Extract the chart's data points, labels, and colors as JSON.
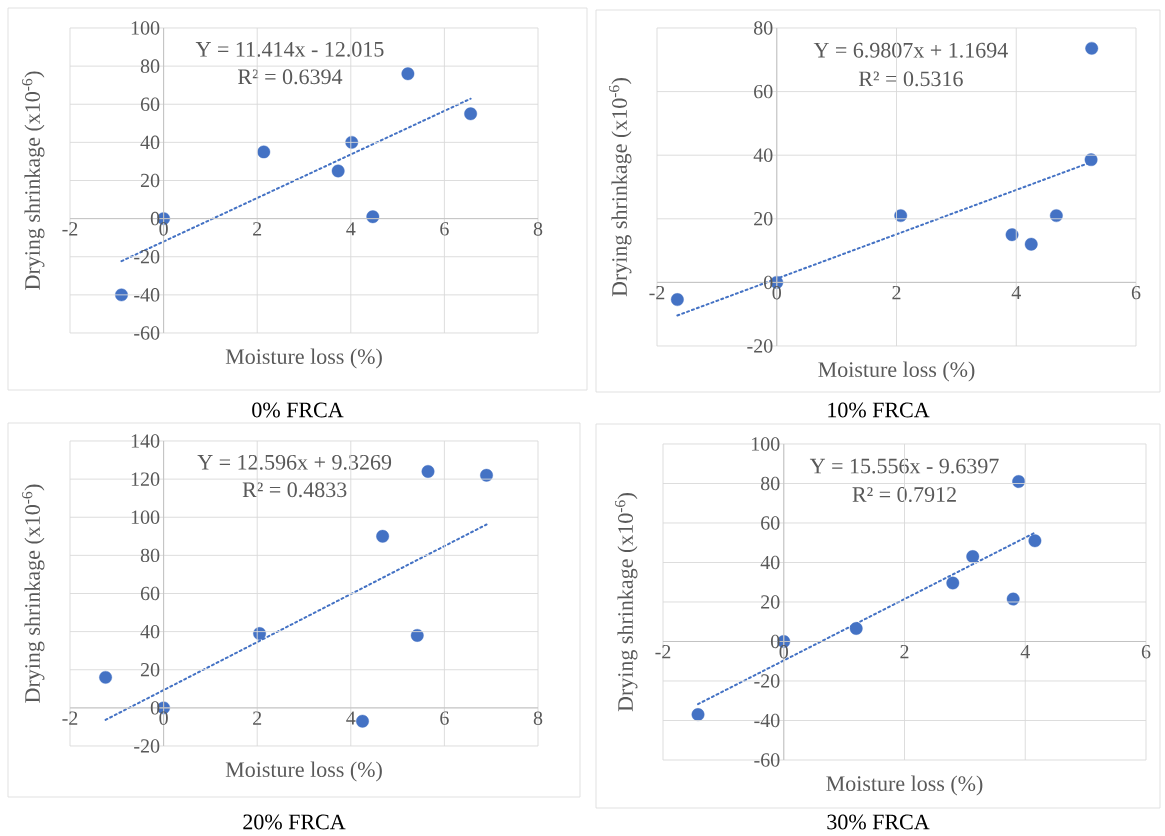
{
  "chart_data": [
    {
      "type": "scatter",
      "title": "0% FRCA",
      "xlabel": "Moisture loss (%)",
      "ylabel": "Drying shrinkage (x10$^{-6}$)",
      "annotations": [
        "Y = 11.414x - 12.015",
        "R² = 0.6394"
      ],
      "grid": true,
      "xlim": [
        -2,
        8
      ],
      "xticks": [
        -2,
        0,
        2,
        4,
        6,
        8
      ],
      "ylim": [
        -60,
        100
      ],
      "yticks": [
        -60,
        -40,
        -20,
        0,
        20,
        40,
        60,
        80,
        100
      ],
      "series": [
        {
          "type": "scatter",
          "marker": "circle",
          "color": "#4472c4",
          "x": [
            -0.9,
            0,
            2.14,
            3.73,
            4.02,
            4.47,
            5.22,
            6.56
          ],
          "values": [
            -40,
            0,
            35,
            25,
            40,
            1,
            76,
            55
          ]
        },
        {
          "type": "line",
          "line_style": "dotted",
          "marker": "none",
          "color": "#4472c4",
          "x": [
            -0.9,
            6.56
          ],
          "values": [
            -22.3,
            62.9
          ]
        }
      ]
    },
    {
      "type": "scatter",
      "title": "10% FRCA",
      "xlabel": "Moisture loss (%)",
      "ylabel": "Drying shrinkage (x10$^{-6}$)",
      "annotations": [
        "Y = 6.9807x + 1.1694",
        "R² = 0.5316"
      ],
      "grid": true,
      "xlim": [
        -2,
        6
      ],
      "xticks": [
        -2,
        0,
        2,
        4,
        6
      ],
      "ylim": [
        -20,
        80
      ],
      "yticks": [
        -20,
        0,
        20,
        40,
        60,
        80
      ],
      "series": [
        {
          "type": "scatter",
          "marker": "circle",
          "color": "#4472c4",
          "x": [
            -1.66,
            0,
            2.07,
            3.93,
            4.25,
            4.67,
            5.25,
            5.26
          ],
          "values": [
            -5.4,
            0,
            21,
            15,
            12,
            21,
            38.6,
            73.6
          ]
        },
        {
          "type": "line",
          "line_style": "dotted",
          "marker": "none",
          "color": "#4472c4",
          "x": [
            -1.66,
            5.25
          ],
          "values": [
            -10.4,
            37.8
          ]
        }
      ]
    },
    {
      "type": "scatter",
      "title": "20% FRCA",
      "xlabel": "Moisture loss (%)",
      "ylabel": "Drying shrinkage (x10$^{-6}$)",
      "annotations": [
        "Y = 12.596x + 9.3269",
        "R² = 0.4833"
      ],
      "grid": true,
      "xlim": [
        -2,
        8
      ],
      "xticks": [
        -2,
        0,
        2,
        4,
        6,
        8
      ],
      "ylim": [
        -20,
        140
      ],
      "yticks": [
        -20,
        0,
        20,
        40,
        60,
        80,
        100,
        120,
        140
      ],
      "series": [
        {
          "type": "scatter",
          "marker": "circle",
          "color": "#4472c4",
          "x": [
            -1.24,
            0,
            2.05,
            4.25,
            4.68,
            5.42,
            5.65,
            6.9
          ],
          "values": [
            16,
            0,
            39,
            -7,
            90,
            38,
            124,
            122
          ]
        },
        {
          "type": "line",
          "line_style": "dotted",
          "marker": "none",
          "color": "#4472c4",
          "x": [
            -1.24,
            6.9
          ],
          "values": [
            -6.3,
            96.2
          ]
        }
      ]
    },
    {
      "type": "scatter",
      "title": "30% FRCA",
      "xlabel": "Moisture loss (%)",
      "ylabel": "Drying shrinkage (x10$^{-6}$)",
      "annotations": [
        "Y = 15.556x - 9.6397",
        "R² = 0.7912"
      ],
      "grid": true,
      "xlim": [
        -2,
        6
      ],
      "xticks": [
        -2,
        0,
        2,
        4,
        6
      ],
      "ylim": [
        -60,
        100
      ],
      "yticks": [
        -60,
        -40,
        -20,
        0,
        20,
        40,
        60,
        80,
        100
      ],
      "series": [
        {
          "type": "scatter",
          "marker": "circle",
          "color": "#4472c4",
          "x": [
            -1.42,
            0,
            1.2,
            2.8,
            3.13,
            3.8,
            3.89,
            4.16
          ],
          "values": [
            -37,
            0,
            6.6,
            29.6,
            43,
            21.5,
            81,
            51
          ]
        },
        {
          "type": "line",
          "line_style": "dotted",
          "marker": "none",
          "color": "#4472c4",
          "x": [
            -1.42,
            4.16
          ],
          "values": [
            -31.7,
            55.1
          ]
        }
      ]
    }
  ]
}
